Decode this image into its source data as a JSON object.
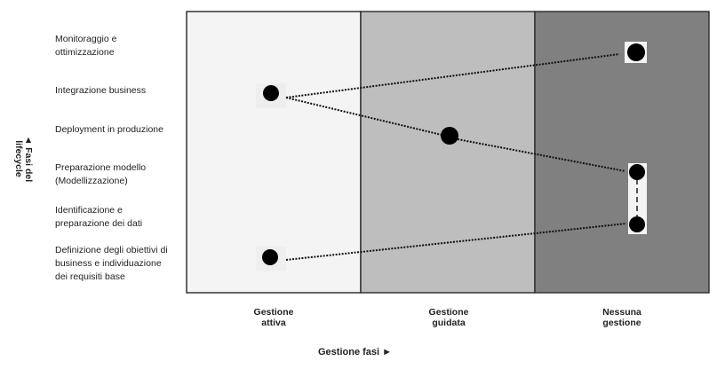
{
  "y_axis": {
    "label_line1": "◄ Fasi del",
    "label_line2": "lifecycle"
  },
  "x_axis": {
    "label": "Gestione fasi ►"
  },
  "rows": [
    {
      "line1": "Monitoraggio e",
      "line2": "ottimizzazione"
    },
    {
      "line1": "Integrazione business"
    },
    {
      "line1": "Deployment in produzione"
    },
    {
      "line1": "Preparazione modello",
      "line2": "(Modellizzazione)"
    },
    {
      "line1": "Identificazione e",
      "line2": "preparazione dei dati"
    },
    {
      "line1": "Definizione degli obiettivi di",
      "line2": "business e individuazione",
      "line3": "dei requisiti base"
    }
  ],
  "columns": [
    {
      "line1": "Gestione",
      "line2": "attiva",
      "color": "#f4f4f4"
    },
    {
      "line1": "Gestione",
      "line2": "guidata",
      "color": "#bebebe"
    },
    {
      "line1": "Nessuna",
      "line2": "gestione",
      "color": "#808080"
    }
  ],
  "points": [
    {
      "phase": "Monitoraggio e ottimizzazione",
      "management": "Nessuna gestione"
    },
    {
      "phase": "Integrazione business",
      "management": "Gestione attiva"
    },
    {
      "phase": "Deployment in produzione",
      "management": "Gestione guidata"
    },
    {
      "phase": "Preparazione modello (Modellizzazione)",
      "management": "Nessuna gestione"
    },
    {
      "phase": "Identificazione e preparazione dei dati",
      "management": "Nessuna gestione"
    },
    {
      "phase": "Definizione degli obiettivi di business e individuazione dei requisiti base",
      "management": "Gestione attiva"
    }
  ]
}
